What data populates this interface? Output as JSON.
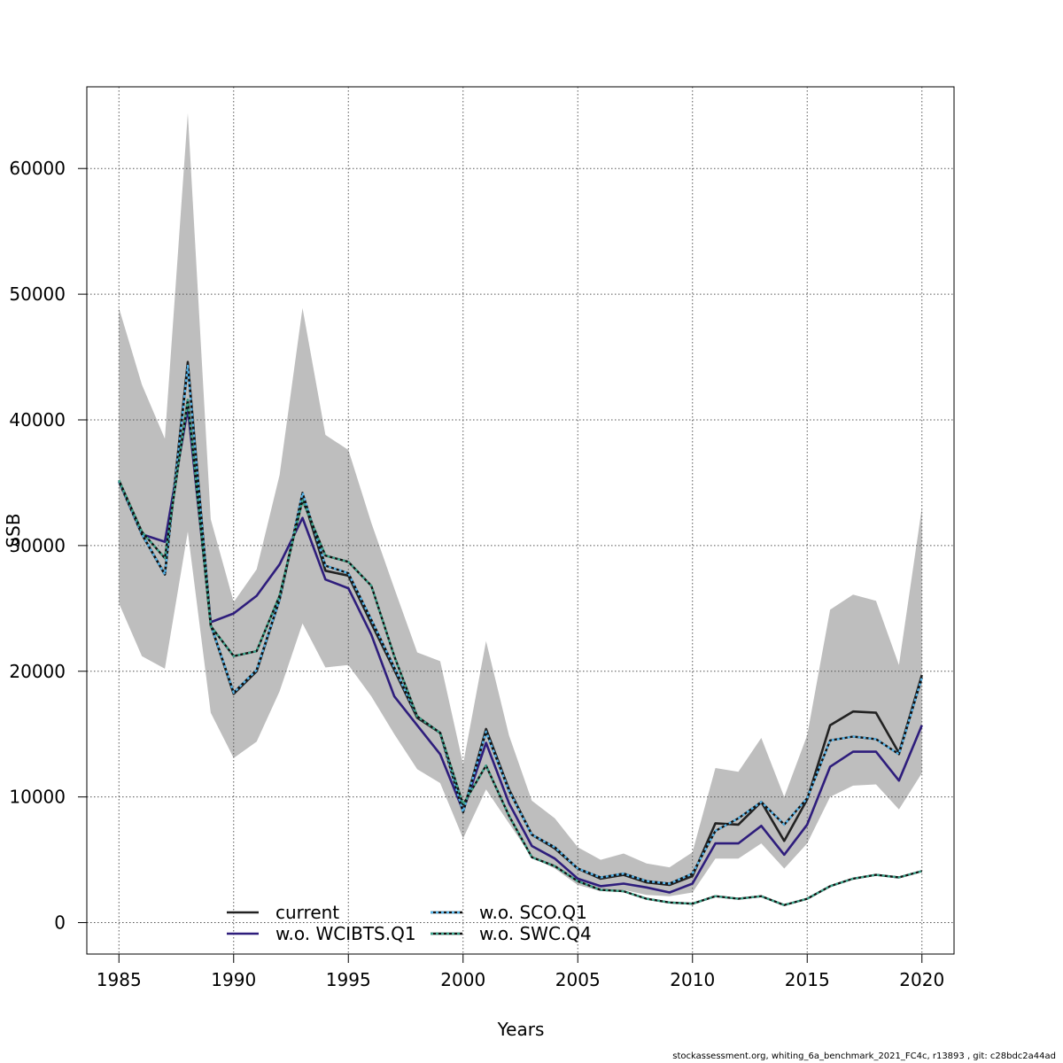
{
  "chart_data": {
    "type": "line",
    "xlabel": "Years",
    "ylabel": "SSB",
    "xlim": [
      1983.6,
      2021.4
    ],
    "ylim": [
      -2500,
      66500
    ],
    "xticks": [
      1985,
      1990,
      1995,
      2000,
      2005,
      2010,
      2015,
      2020
    ],
    "yticks": [
      0,
      10000,
      20000,
      30000,
      40000,
      50000,
      60000
    ],
    "grid": true,
    "legend_position": "bottom",
    "x": [
      1985,
      1986,
      1987,
      1988,
      1989,
      1990,
      1991,
      1992,
      1993,
      1994,
      1995,
      1996,
      1997,
      1998,
      1999,
      2000,
      2001,
      2002,
      2003,
      2004,
      2005,
      2006,
      2007,
      2008,
      2009,
      2010,
      2011,
      2012,
      2013,
      2014,
      2015,
      2016,
      2017,
      2018,
      2019,
      2020
    ],
    "confidence_band": {
      "upper": [
        48900,
        42800,
        38500,
        64400,
        32100,
        25500,
        28100,
        35600,
        48900,
        38800,
        37600,
        31800,
        26600,
        21500,
        20800,
        12600,
        22400,
        14900,
        9700,
        8300,
        6000,
        5000,
        5500,
        4700,
        4400,
        5600,
        12300,
        12000,
        14700,
        10000,
        14900,
        24900,
        26100,
        25600,
        20500,
        33000
      ],
      "lower": [
        25400,
        21200,
        20200,
        31100,
        16700,
        13100,
        14400,
        18400,
        23800,
        20300,
        20500,
        18000,
        15000,
        12200,
        11100,
        6700,
        10600,
        7900,
        5200,
        4300,
        3000,
        2500,
        2600,
        2200,
        2100,
        2400,
        5100,
        5100,
        6300,
        4300,
        6300,
        10000,
        10900,
        11000,
        9000,
        11900
      ]
    },
    "series": [
      {
        "name": "current",
        "color": "#222222",
        "dashed": false,
        "values": [
          35100,
          30900,
          27700,
          44600,
          23700,
          18200,
          20000,
          25700,
          34000,
          28000,
          27600,
          23800,
          20100,
          16300,
          15100,
          8800,
          15400,
          10600,
          7000,
          5900,
          4300,
          3500,
          3800,
          3200,
          3000,
          3700,
          7900,
          7800,
          9600,
          6500,
          9800,
          15700,
          16800,
          16700,
          13500,
          19700
        ]
      },
      {
        "name": "w.o. WCIBTS.Q1",
        "color": "#2e1d7c",
        "dashed": false,
        "values": [
          35100,
          30900,
          30300,
          40900,
          23900,
          24600,
          26000,
          28500,
          32200,
          27300,
          26600,
          22900,
          18000,
          15700,
          13400,
          8900,
          14300,
          9500,
          6100,
          5100,
          3500,
          2900,
          3100,
          2800,
          2400,
          3100,
          6300,
          6300,
          7700,
          5400,
          7800,
          12400,
          13600,
          13600,
          11300,
          15700
        ]
      },
      {
        "name": "w.o. SCO.Q1",
        "color": "#56b4e9",
        "dashed": true,
        "values": [
          35100,
          30900,
          27700,
          44300,
          23700,
          18300,
          20100,
          25700,
          34200,
          28400,
          27800,
          24100,
          20300,
          16400,
          15100,
          8800,
          15200,
          10500,
          7000,
          6000,
          4300,
          3600,
          3900,
          3300,
          3100,
          3900,
          7300,
          8300,
          9600,
          7800,
          9900,
          14500,
          14800,
          14600,
          13400,
          19500
        ]
      },
      {
        "name": "w.o. SWC.Q4",
        "color": "#3da58c",
        "dashed": true,
        "values": [
          35200,
          31100,
          29000,
          41600,
          23600,
          21200,
          21600,
          26000,
          33600,
          29200,
          28700,
          26800,
          21200,
          16400,
          15100,
          9400,
          12500,
          8500,
          5200,
          4500,
          3300,
          2600,
          2500,
          1900,
          1600,
          1500,
          2100,
          1900,
          2100,
          1400,
          1900,
          2900,
          3500,
          3800,
          3600,
          4100
        ]
      }
    ]
  },
  "footer": "stockassessment.org, whiting_6a_benchmark_2021_FC4c, r13893 , git: c28bdc2a44ad"
}
